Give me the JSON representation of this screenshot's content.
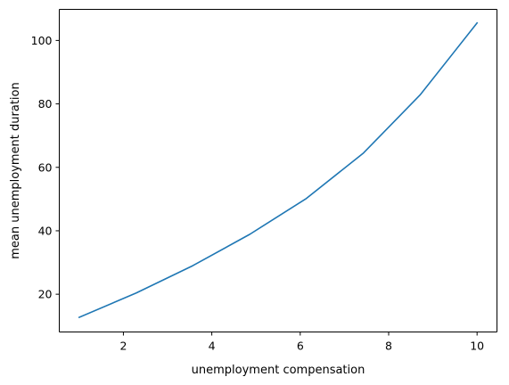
{
  "chart_data": {
    "type": "line",
    "xlabel": "unemployment compensation",
    "ylabel": "mean unemployment duration",
    "xlim": [
      0.55,
      10.45
    ],
    "ylim": [
      8.1,
      109.8
    ],
    "xticks": [
      2,
      4,
      6,
      8,
      10
    ],
    "yticks": [
      20,
      40,
      60,
      80,
      100
    ],
    "grid": false,
    "series": [
      {
        "color": "#1f77b4",
        "x": [
          1.0,
          2.29,
          3.57,
          4.86,
          6.14,
          7.43,
          8.71,
          10.0
        ],
        "y": [
          12.7,
          20.4,
          29.0,
          38.9,
          50.2,
          64.5,
          82.8,
          105.5
        ]
      }
    ]
  }
}
